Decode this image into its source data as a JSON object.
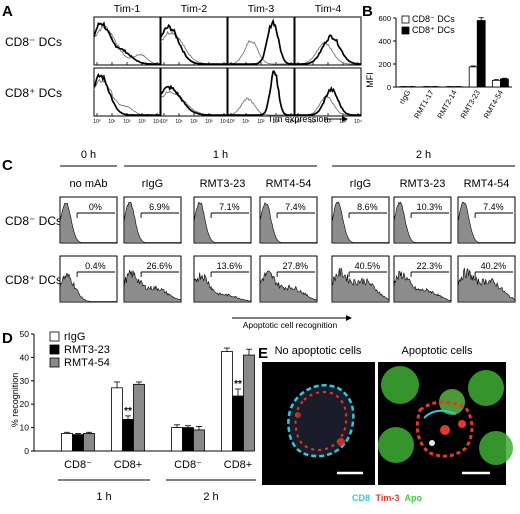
{
  "panels": {
    "a": "A",
    "b": "B",
    "c": "C",
    "d": "D",
    "e": "E"
  },
  "panel_a": {
    "columns": [
      "Tim-1",
      "Tim-2",
      "Tim-3",
      "Tim-4"
    ],
    "rows": [
      "CD8⁻ DCs",
      "CD8⁺ DCs"
    ],
    "xlabel": "Tim expression",
    "ticks": [
      "10⁰",
      "10¹",
      "10²",
      "10³",
      "10⁴"
    ]
  },
  "panel_c": {
    "time_headers": [
      "0 h",
      "1 h",
      "2 h"
    ],
    "antibodies": [
      "no mAb",
      "rIgG",
      "RMT3-23",
      "RMT4-54",
      "rIgG",
      "RMT3-23",
      "RMT4-54"
    ],
    "rows": [
      "CD8⁻ DCs",
      "CD8⁺ DCs"
    ],
    "percent_row1": [
      "0%",
      "6.9%",
      "7.1%",
      "7.4%",
      "8.6%",
      "10.3%",
      "7.4%"
    ],
    "percent_row2": [
      "0.4%",
      "26.6%",
      "13.6%",
      "27.8%",
      "40.5%",
      "22.3%",
      "40.2%"
    ],
    "xlabel": "Apoptotic cell recognition"
  },
  "panel_e": {
    "titles": [
      "No apoptotic cells",
      "Apoptotic cells"
    ],
    "legend": {
      "cd8": "CD8",
      "tim3": "Tim-3",
      "apo": "Apo"
    },
    "colors": {
      "cd8": "#35c8d8",
      "tim3": "#e23a2c",
      "apo": "#3fcf3a"
    }
  },
  "chart_data": [
    {
      "type": "bar",
      "panel": "B",
      "categories": [
        "rIgG",
        "RMT1-17",
        "RMT2-14",
        "RMT3-23",
        "RMT4-54"
      ],
      "series": [
        {
          "name": "CD8⁻ DCs",
          "values": [
            3,
            3,
            3,
            175,
            58
          ],
          "errors": [
            1,
            1,
            1,
            8,
            6
          ],
          "color": "#ffffff"
        },
        {
          "name": "CD8⁺ DCs",
          "values": [
            3,
            3,
            3,
            578,
            70
          ],
          "errors": [
            1,
            1,
            1,
            25,
            6
          ],
          "color": "#000000"
        }
      ],
      "ylabel": "MFI",
      "ylim": [
        0,
        600
      ],
      "yticks": [
        0,
        200,
        400,
        600
      ],
      "legend": "top-left"
    },
    {
      "type": "bar",
      "panel": "D",
      "groups": [
        {
          "label": "CD8⁻",
          "time": "1 h"
        },
        {
          "label": "CD8+",
          "time": "1 h"
        },
        {
          "label": "CD8⁻",
          "time": "2 h"
        },
        {
          "label": "CD8+",
          "time": "2 h"
        }
      ],
      "time_labels": [
        "1 h",
        "2 h"
      ],
      "series": [
        {
          "name": "rIgG",
          "values": [
            7.5,
            27,
            10,
            42.5
          ],
          "errors": [
            0.5,
            2.5,
            1.2,
            1.5
          ],
          "color": "#ffffff"
        },
        {
          "name": "RMT3-23",
          "values": [
            7,
            13.5,
            10,
            23.5
          ],
          "errors": [
            0.5,
            1.5,
            0.8,
            3
          ],
          "color": "#000000"
        },
        {
          "name": "RMT4-54",
          "values": [
            7.5,
            28.5,
            9,
            41
          ],
          "errors": [
            0.5,
            1,
            1.5,
            2.5
          ],
          "color": "#8a8a8a"
        }
      ],
      "significance": [
        {
          "group": 1,
          "series": 1,
          "label": "**"
        },
        {
          "group": 3,
          "series": 1,
          "label": "**"
        }
      ],
      "ylabel": "% recognition",
      "ylim": [
        0,
        50
      ],
      "yticks": [
        0,
        10,
        20,
        30,
        40,
        50
      ],
      "legend": "top-left"
    }
  ]
}
